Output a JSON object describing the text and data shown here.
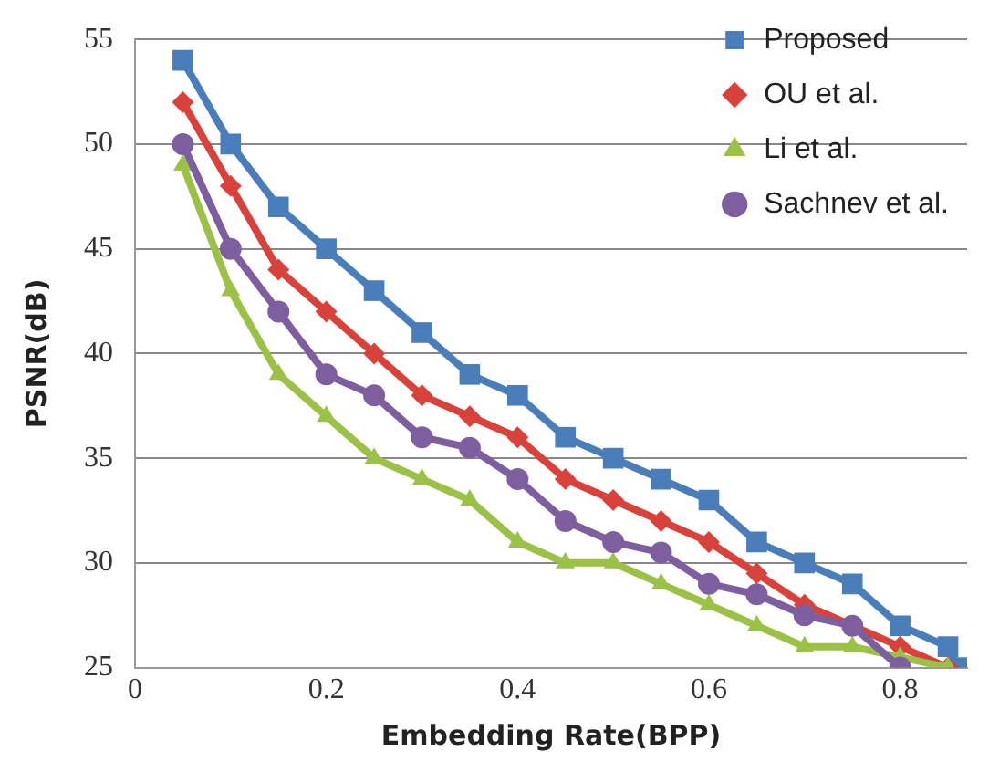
{
  "chart_data": {
    "type": "line",
    "xlabel": "Embedding Rate(BPP)",
    "ylabel": "PSNR(dB)",
    "xlim": [
      0,
      0.87
    ],
    "xticks": [
      0,
      0.2,
      0.4,
      0.6,
      0.8
    ],
    "ylim": [
      25,
      55
    ],
    "yticks": [
      25,
      30,
      35,
      40,
      45,
      50,
      55
    ],
    "grid": "y",
    "legend": "top right",
    "series": [
      {
        "name": "Proposed",
        "color": "#4a7ebb",
        "marker": "square",
        "x": [
          0.05,
          0.1,
          0.15,
          0.2,
          0.25,
          0.3,
          0.35,
          0.4,
          0.45,
          0.5,
          0.55,
          0.6,
          0.65,
          0.7,
          0.75,
          0.8,
          0.85,
          0.86
        ],
        "values": [
          54,
          50,
          47,
          45,
          43,
          41,
          39,
          38,
          36,
          35,
          34,
          33,
          31,
          30,
          29,
          27,
          26,
          25
        ]
      },
      {
        "name": "OU et al.",
        "color": "#d9413b",
        "marker": "diamond",
        "x": [
          0.05,
          0.1,
          0.15,
          0.2,
          0.25,
          0.3,
          0.35,
          0.4,
          0.45,
          0.5,
          0.55,
          0.6,
          0.65,
          0.7,
          0.75,
          0.8,
          0.85
        ],
        "values": [
          52,
          48,
          44,
          42,
          40,
          38,
          37,
          36,
          34,
          33,
          32,
          31,
          29.5,
          28,
          27,
          26,
          25
        ]
      },
      {
        "name": "Li et al.",
        "color": "#9bc246",
        "marker": "triangle",
        "x": [
          0.05,
          0.1,
          0.15,
          0.2,
          0.25,
          0.3,
          0.35,
          0.4,
          0.45,
          0.5,
          0.55,
          0.6,
          0.65,
          0.7,
          0.75,
          0.8,
          0.85
        ],
        "values": [
          49,
          43,
          39,
          37,
          35,
          34,
          33,
          31,
          30,
          30,
          29,
          28,
          27,
          26,
          26,
          25.5,
          25
        ]
      },
      {
        "name": "Sachnev et al.",
        "color": "#7d5fa0",
        "marker": "circle",
        "x": [
          0.05,
          0.1,
          0.15,
          0.2,
          0.25,
          0.3,
          0.35,
          0.4,
          0.45,
          0.5,
          0.55,
          0.6,
          0.65,
          0.7,
          0.75,
          0.8
        ],
        "values": [
          50,
          45,
          42,
          39,
          38,
          36,
          35.5,
          34,
          32,
          31,
          30.5,
          29,
          28.5,
          27.5,
          27,
          25
        ]
      }
    ]
  }
}
